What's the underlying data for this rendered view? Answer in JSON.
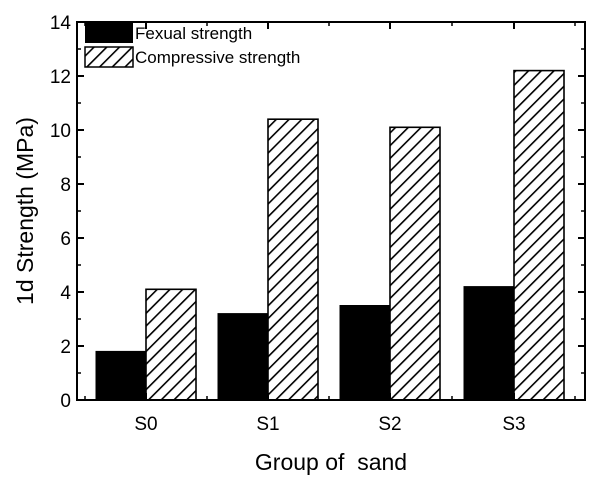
{
  "chart_data": {
    "type": "bar",
    "categories": [
      "S0",
      "S1",
      "S2",
      "S3"
    ],
    "series": [
      {
        "name": "Fexual strength",
        "values": [
          1.8,
          3.2,
          3.5,
          4.2
        ],
        "fill": "solid-black"
      },
      {
        "name": "Compressive strength",
        "values": [
          4.1,
          10.4,
          10.1,
          12.2
        ],
        "fill": "diagonal-hatch"
      }
    ],
    "title": "",
    "xlabel": "Group of  sand",
    "ylabel": "1d Strength (MPa)",
    "ylim": [
      0,
      14
    ],
    "yticks": [
      0,
      2,
      4,
      6,
      8,
      10,
      12,
      14
    ],
    "grid": false,
    "legend_position": "top-left",
    "colors": {
      "bar_fill": "#000000",
      "hatch": "#000000",
      "background": "#ffffff"
    }
  }
}
